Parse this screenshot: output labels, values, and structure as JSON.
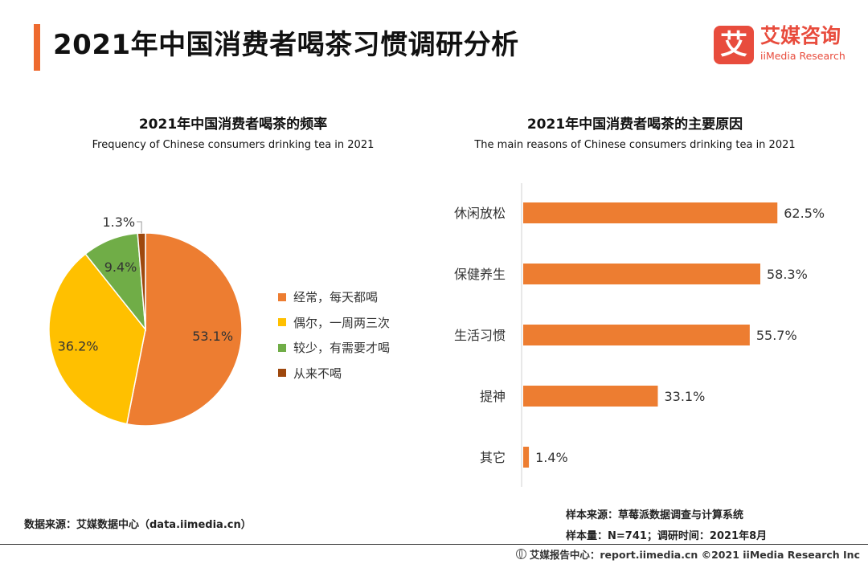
{
  "header": {
    "title": "2021年中国消费者喝茶习惯调研分析",
    "logo_mark": "艾",
    "logo_cn": "艾媒咨询",
    "logo_en": "iiMedia Research"
  },
  "colors": {
    "accent": "#ee6a2f",
    "orange": "#ed7d31",
    "yellow": "#ffc000",
    "green": "#70ad47",
    "brown": "#9e480e",
    "logo": "#e84c3d"
  },
  "chart_data": [
    {
      "type": "pie",
      "title": "2021年中国消费者喝茶的频率",
      "subtitle": "Frequency of Chinese consumers drinking tea in 2021",
      "categories": [
        "经常，每天都喝",
        "偶尔，一周两三次",
        "较少，有需要才喝",
        "从来不喝"
      ],
      "values": [
        53.1,
        36.2,
        9.4,
        1.3
      ],
      "labels": [
        "53.1%",
        "36.2%",
        "9.4%",
        "1.3%"
      ],
      "legend_position": "right"
    },
    {
      "type": "bar",
      "orientation": "horizontal",
      "title": "2021年中国消费者喝茶的主要原因",
      "subtitle": "The main reasons of Chinese consumers drinking tea in 2021",
      "categories": [
        "休闲放松",
        "保健养生",
        "生活习惯",
        "提神",
        "其它"
      ],
      "values": [
        62.5,
        58.3,
        55.7,
        33.1,
        1.4
      ],
      "labels": [
        "62.5%",
        "58.3%",
        "55.7%",
        "33.1%",
        "1.4%"
      ],
      "xlim": [
        0,
        100
      ]
    }
  ],
  "footer": {
    "source": "数据来源：艾媒数据中心（data.iimedia.cn）",
    "sample_source": "样本来源：草莓派数据调查与计算系统",
    "sample_size": "样本量：N=741；调研时间：2021年8月",
    "copyright": "艾媒报告中心：report.iimedia.cn  ©2021  iiMedia Research  Inc"
  }
}
